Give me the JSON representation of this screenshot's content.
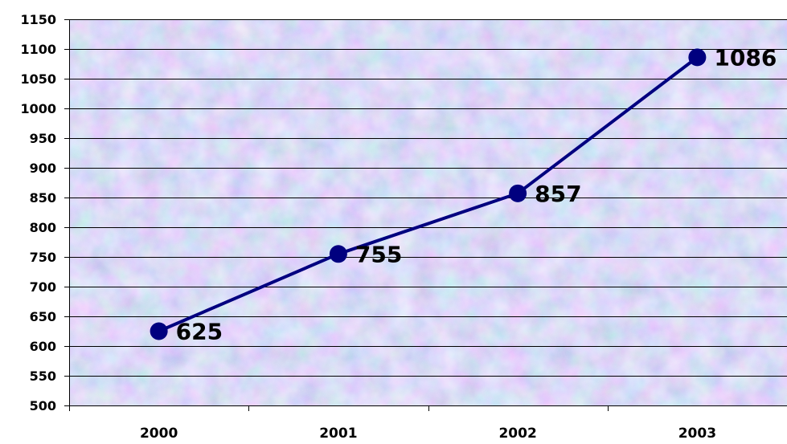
{
  "chart_data": {
    "type": "line",
    "categories": [
      "2000",
      "2001",
      "2002",
      "2003"
    ],
    "series": [
      {
        "values": [
          625,
          755,
          857,
          1086
        ]
      }
    ],
    "data_labels": [
      "625",
      "755",
      "857",
      "1086"
    ],
    "ylim": [
      500,
      1150
    ],
    "yticks": [
      500,
      550,
      600,
      650,
      700,
      750,
      800,
      850,
      900,
      950,
      1000,
      1050,
      1100,
      1150
    ],
    "ytick_labels": [
      "500",
      "550",
      "600",
      "650",
      "700",
      "750",
      "800",
      "850",
      "900",
      "950",
      "1000",
      "1050",
      "1100",
      "1150"
    ],
    "grid": true,
    "legend": "none",
    "colors": {
      "line": "#00007F",
      "marker": "#00007F",
      "gridline": "#000000",
      "plot_background": "#C8D4F0"
    }
  }
}
